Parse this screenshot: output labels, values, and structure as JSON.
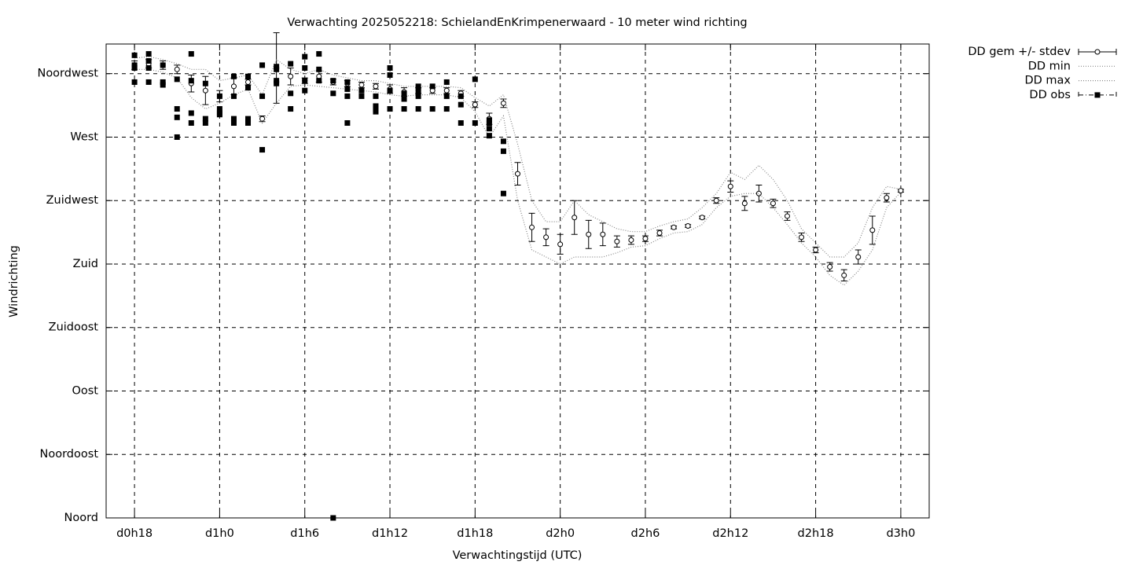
{
  "chart_data": {
    "type": "line",
    "title": "Verwachting 2025052218: SchielandEnKrimpenerwaard - 10 meter wind richting",
    "x_label": "Verwachtingstijd (UTC)",
    "y_label": "Windrichting",
    "xlim": [
      16,
      74
    ],
    "ylim": [
      0,
      336
    ],
    "xticks": [
      {
        "value": 18,
        "label": "d0h18"
      },
      {
        "value": 24,
        "label": "d1h0"
      },
      {
        "value": 30,
        "label": "d1h6"
      },
      {
        "value": 36,
        "label": "d1h12"
      },
      {
        "value": 42,
        "label": "d1h18"
      },
      {
        "value": 48,
        "label": "d2h0"
      },
      {
        "value": 54,
        "label": "d2h6"
      },
      {
        "value": 60,
        "label": "d2h12"
      },
      {
        "value": 66,
        "label": "d2h18"
      },
      {
        "value": 72,
        "label": "d3h0"
      }
    ],
    "yticks": [
      {
        "value": 0,
        "label": "Noord"
      },
      {
        "value": 45,
        "label": "Noordoost"
      },
      {
        "value": 90,
        "label": "Oost"
      },
      {
        "value": 135,
        "label": "Zuidoost"
      },
      {
        "value": 180,
        "label": "Zuid"
      },
      {
        "value": 225,
        "label": "Zuidwest"
      },
      {
        "value": 270,
        "label": "West"
      },
      {
        "value": 315,
        "label": "Noordwest"
      }
    ],
    "grid": true,
    "legend": "outside-top-right",
    "series": [
      {
        "name": "DD gem +/- stdev",
        "color": "#000000",
        "style": "errorbars",
        "x": [
          18,
          19,
          20,
          21,
          22,
          23,
          24,
          25,
          26,
          27,
          28,
          29,
          30,
          31,
          32,
          33,
          34,
          35,
          36,
          37,
          38,
          39,
          40,
          41,
          42,
          43,
          44,
          45,
          46,
          47,
          48,
          49,
          50,
          51,
          52,
          53,
          54,
          55,
          56,
          57,
          58,
          59,
          60,
          61,
          62,
          63,
          64,
          65,
          66,
          67,
          68,
          69,
          70,
          71,
          72
        ],
        "values": [
          321,
          322,
          321,
          318,
          308,
          303,
          299,
          306,
          309,
          283,
          319,
          313,
          310,
          313,
          309,
          308,
          307,
          306,
          304,
          302,
          303,
          303,
          303,
          301,
          293,
          283,
          294,
          244,
          206,
          199,
          194,
          213,
          201,
          201,
          196,
          197,
          198,
          202,
          206,
          207,
          213,
          225,
          235,
          223,
          230,
          223,
          214,
          199,
          190,
          178,
          172,
          185,
          204,
          227,
          232
        ],
        "errors": [
          3,
          3,
          3,
          3,
          6,
          10,
          4,
          6,
          2,
          2,
          25,
          6,
          2,
          4,
          2,
          2,
          2,
          2,
          3,
          3,
          2,
          2,
          2,
          2,
          2,
          4,
          3,
          8,
          10,
          6,
          7,
          12,
          10,
          8,
          4,
          3,
          2,
          2,
          1,
          1,
          1,
          2,
          4,
          5,
          6,
          3,
          3,
          3,
          2,
          3,
          4,
          5,
          10,
          3,
          1
        ]
      },
      {
        "name": "DD min",
        "color": "#888888",
        "style": "dotted",
        "x": [
          18,
          19,
          20,
          21,
          22,
          23,
          24,
          25,
          26,
          27,
          28,
          29,
          30,
          31,
          32,
          33,
          34,
          35,
          36,
          37,
          38,
          39,
          40,
          41,
          42,
          43,
          44,
          45,
          46,
          47,
          48,
          49,
          50,
          51,
          52,
          53,
          54,
          55,
          56,
          57,
          58,
          59,
          60,
          61,
          62,
          63,
          64,
          65,
          66,
          67,
          68,
          69,
          70,
          71,
          72
        ],
        "values": [
          318,
          318,
          316,
          312,
          298,
          290,
          294,
          300,
          304,
          280,
          294,
          306,
          307,
          306,
          305,
          304,
          303,
          302,
          300,
          299,
          300,
          300,
          300,
          298,
          288,
          270,
          285,
          225,
          190,
          185,
          180,
          185,
          185,
          185,
          188,
          192,
          193,
          198,
          202,
          203,
          208,
          220,
          228,
          230,
          230,
          220,
          208,
          195,
          185,
          172,
          165,
          175,
          190,
          220,
          231
        ]
      },
      {
        "name": "DD max",
        "color": "#888888",
        "style": "dotted",
        "x": [
          18,
          19,
          20,
          21,
          22,
          23,
          24,
          25,
          26,
          27,
          28,
          29,
          30,
          31,
          32,
          33,
          34,
          35,
          36,
          37,
          38,
          39,
          40,
          41,
          42,
          43,
          44,
          45,
          46,
          47,
          48,
          49,
          50,
          51,
          52,
          53,
          54,
          55,
          56,
          57,
          58,
          59,
          60,
          61,
          62,
          63,
          64,
          65,
          66,
          67,
          68,
          69,
          70,
          71,
          72
        ],
        "values": [
          326,
          327,
          325,
          322,
          318,
          318,
          310,
          312,
          314,
          300,
          325,
          318,
          315,
          318,
          314,
          312,
          310,
          310,
          308,
          306,
          306,
          306,
          306,
          305,
          298,
          292,
          300,
          265,
          225,
          210,
          210,
          225,
          215,
          210,
          205,
          203,
          203,
          207,
          210,
          212,
          220,
          230,
          245,
          240,
          250,
          240,
          225,
          205,
          195,
          185,
          185,
          195,
          220,
          235,
          233
        ]
      },
      {
        "name": "DD obs",
        "color": "#000000",
        "style": "points",
        "x": [
          18,
          18,
          18,
          18,
          19,
          19,
          19,
          19,
          20,
          20,
          20,
          21,
          21,
          21,
          21,
          22,
          22,
          22,
          22,
          23,
          23,
          23,
          24,
          24,
          24,
          24,
          25,
          25,
          25,
          25,
          26,
          26,
          26,
          26,
          27,
          27,
          27,
          28,
          28,
          28,
          28,
          29,
          29,
          29,
          30,
          30,
          30,
          30,
          31,
          31,
          31,
          32,
          32,
          32,
          33,
          33,
          33,
          33,
          34,
          34,
          35,
          35,
          35,
          35,
          36,
          36,
          36,
          36,
          37,
          37,
          37,
          38,
          38,
          38,
          38,
          39,
          39,
          40,
          40,
          40,
          41,
          41,
          41,
          42,
          42,
          43,
          43,
          43,
          43,
          44,
          44,
          44
        ],
        "values": [
          328,
          321,
          319,
          309,
          329,
          324,
          319,
          309,
          321,
          309,
          307,
          311,
          290,
          284,
          270,
          329,
          310,
          287,
          280,
          308,
          283,
          280,
          299,
          290,
          287,
          286,
          313,
          299,
          283,
          280,
          313,
          305,
          283,
          280,
          321,
          299,
          261,
          320,
          318,
          310,
          308,
          322,
          301,
          290,
          327,
          319,
          310,
          303,
          329,
          318,
          310,
          310,
          301,
          0,
          309,
          304,
          299,
          280,
          303,
          299,
          299,
          292,
          290,
          288,
          319,
          314,
          303,
          290,
          301,
          297,
          290,
          306,
          303,
          299,
          290,
          306,
          290,
          309,
          299,
          290,
          299,
          293,
          280,
          311,
          280,
          282,
          280,
          276,
          271,
          267,
          260,
          230
        ]
      }
    ]
  }
}
